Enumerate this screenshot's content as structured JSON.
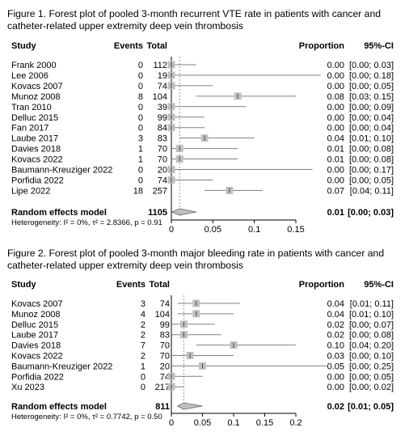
{
  "chart_data": [
    {
      "type": "forest",
      "caption": "Figure 1. Forest plot of pooled 3-month recurrent VTE rate in patients with cancer and catheter-related upper extremity deep vein thrombosis",
      "headers": {
        "study": "Study",
        "events": "Events",
        "total": "Total",
        "proportion": "Proportion",
        "ci": "95%-CI"
      },
      "studies": [
        {
          "name": "Frank 2000",
          "events": "0",
          "total": "112",
          "prop": 0.0,
          "lo": 0.0,
          "hi": 0.03,
          "prop_text": "0.00",
          "ci_text": "[0.00; 0.03]",
          "weight": 1
        },
        {
          "name": "Lee 2006",
          "events": "0",
          "total": "19",
          "prop": 0.0,
          "lo": 0.0,
          "hi": 0.18,
          "prop_text": "0.00",
          "ci_text": "[0.00; 0.18]",
          "weight": 1
        },
        {
          "name": "Kovacs 2007",
          "events": "0",
          "total": "74",
          "prop": 0.0,
          "lo": 0.0,
          "hi": 0.05,
          "prop_text": "0.00",
          "ci_text": "[0.00; 0.05]",
          "weight": 1
        },
        {
          "name": "Munoz 2008",
          "events": "8",
          "total": "104",
          "prop": 0.08,
          "lo": 0.03,
          "hi": 0.15,
          "prop_text": "0.08",
          "ci_text": "[0.03; 0.15]",
          "weight": 1
        },
        {
          "name": "Tran 2010",
          "events": "0",
          "total": "39",
          "prop": 0.0,
          "lo": 0.0,
          "hi": 0.09,
          "prop_text": "0.00",
          "ci_text": "[0.00; 0.09]",
          "weight": 1
        },
        {
          "name": "Delluc 2015",
          "events": "0",
          "total": "99",
          "prop": 0.0,
          "lo": 0.0,
          "hi": 0.04,
          "prop_text": "0.00",
          "ci_text": "[0.00; 0.04]",
          "weight": 1
        },
        {
          "name": "Fan 2017",
          "events": "0",
          "total": "84",
          "prop": 0.0,
          "lo": 0.0,
          "hi": 0.04,
          "prop_text": "0.00",
          "ci_text": "[0.00; 0.04]",
          "weight": 1
        },
        {
          "name": "Laube 2017",
          "events": "3",
          "total": "83",
          "prop": 0.04,
          "lo": 0.01,
          "hi": 0.1,
          "prop_text": "0.04",
          "ci_text": "[0.01; 0.10]",
          "weight": 1
        },
        {
          "name": "Davies 2018",
          "events": "1",
          "total": "70",
          "prop": 0.01,
          "lo": 0.0,
          "hi": 0.08,
          "prop_text": "0.01",
          "ci_text": "[0.00; 0.08]",
          "weight": 1
        },
        {
          "name": "Kovacs 2022",
          "events": "1",
          "total": "70",
          "prop": 0.01,
          "lo": 0.0,
          "hi": 0.08,
          "prop_text": "0.01",
          "ci_text": "[0.00; 0.08]",
          "weight": 1
        },
        {
          "name": "Baumann-Kreuziger 2022",
          "events": "0",
          "total": "20",
          "prop": 0.0,
          "lo": 0.0,
          "hi": 0.17,
          "prop_text": "0.00",
          "ci_text": "[0.00; 0.17]",
          "weight": 1
        },
        {
          "name": "Porfidia 2022",
          "events": "0",
          "total": "74",
          "prop": 0.0,
          "lo": 0.0,
          "hi": 0.05,
          "prop_text": "0.00",
          "ci_text": "[0.00; 0.05]",
          "weight": 1
        },
        {
          "name": "Lipe 2022",
          "events": "18",
          "total": "257",
          "prop": 0.07,
          "lo": 0.04,
          "hi": 0.11,
          "prop_text": "0.07",
          "ci_text": "[0.04; 0.11]",
          "weight": 1
        }
      ],
      "pooled": {
        "label": "Random effects model",
        "total": "1105",
        "prop": 0.01,
        "lo": 0.0,
        "hi": 0.03,
        "prop_text": "0.01",
        "ci_text": "[0.00; 0.03]"
      },
      "heterogeneity": {
        "prefix": "Heterogeneity: ",
        "i2": "I² = 0%",
        "tau2": "τ² = 2.8366",
        "p": "p = 0.91"
      },
      "x_ticks": [
        {
          "value": 0,
          "label": "0"
        },
        {
          "value": 0.05,
          "label": "0.05"
        },
        {
          "value": 0.1,
          "label": "0.1"
        },
        {
          "value": 0.15,
          "label": "0.15"
        }
      ],
      "xlim": [
        0,
        0.15
      ],
      "colors": {
        "box": "#c0c0c0",
        "line": "#808080",
        "diamond": "#c0c0c0"
      }
    },
    {
      "type": "forest",
      "caption": "Figure 2. Forest plot of pooled 3-month major bleeding rate in patients with cancer and catheter-related upper extremity deep vein thrombosis",
      "headers": {
        "study": "Study",
        "events": "Events",
        "total": "Total",
        "proportion": "Proportion",
        "ci": "95%-CI"
      },
      "studies": [
        {
          "name": "Kovacs 2007",
          "events": "3",
          "total": "74",
          "prop": 0.04,
          "lo": 0.01,
          "hi": 0.11,
          "prop_text": "0.04",
          "ci_text": "[0.01; 0.11]",
          "weight": 1
        },
        {
          "name": "Munoz 2008",
          "events": "4",
          "total": "104",
          "prop": 0.04,
          "lo": 0.01,
          "hi": 0.1,
          "prop_text": "0.04",
          "ci_text": "[0.01; 0.10]",
          "weight": 1
        },
        {
          "name": "Delluc 2015",
          "events": "2",
          "total": "99",
          "prop": 0.02,
          "lo": 0.0,
          "hi": 0.07,
          "prop_text": "0.02",
          "ci_text": "[0.00; 0.07]",
          "weight": 1
        },
        {
          "name": "Laube 2017",
          "events": "2",
          "total": "83",
          "prop": 0.02,
          "lo": 0.0,
          "hi": 0.08,
          "prop_text": "0.02",
          "ci_text": "[0.00; 0.08]",
          "weight": 1
        },
        {
          "name": "Davies 2018",
          "events": "7",
          "total": "70",
          "prop": 0.1,
          "lo": 0.04,
          "hi": 0.2,
          "prop_text": "0.10",
          "ci_text": "[0.04; 0.20]",
          "weight": 1
        },
        {
          "name": "Kovacs 2022",
          "events": "2",
          "total": "70",
          "prop": 0.03,
          "lo": 0.0,
          "hi": 0.1,
          "prop_text": "0.03",
          "ci_text": "[0.00; 0.10]",
          "weight": 1
        },
        {
          "name": "Baumann-Kreuziger 2022",
          "events": "1",
          "total": "20",
          "prop": 0.05,
          "lo": 0.0,
          "hi": 0.25,
          "prop_text": "0.05",
          "ci_text": "[0.00; 0.25]",
          "weight": 1
        },
        {
          "name": "Porfidia 2022",
          "events": "0",
          "total": "74",
          "prop": 0.0,
          "lo": 0.0,
          "hi": 0.05,
          "prop_text": "0.00",
          "ci_text": "[0.00; 0.05]",
          "weight": 1
        },
        {
          "name": "Xu 2023",
          "events": "0",
          "total": "217",
          "prop": 0.0,
          "lo": 0.0,
          "hi": 0.02,
          "prop_text": "0.00",
          "ci_text": "[0.00; 0.02]",
          "weight": 1
        }
      ],
      "pooled": {
        "label": "Random effects model",
        "total": "811",
        "prop": 0.02,
        "lo": 0.01,
        "hi": 0.05,
        "prop_text": "0.02",
        "ci_text": "[0.01; 0.05]"
      },
      "heterogeneity": {
        "prefix": "Heterogeneity: ",
        "i2": "I² = 0%",
        "tau2": "τ² = 0.7742",
        "p": "p = 0.50"
      },
      "x_ticks": [
        {
          "value": 0,
          "label": "0"
        },
        {
          "value": 0.05,
          "label": "0.05"
        },
        {
          "value": 0.1,
          "label": "0.1"
        },
        {
          "value": 0.15,
          "label": "0.15"
        },
        {
          "value": 0.2,
          "label": "0.2"
        }
      ],
      "xlim": [
        0,
        0.2
      ],
      "colors": {
        "box": "#c0c0c0",
        "line": "#808080",
        "diamond": "#c0c0c0"
      }
    }
  ]
}
